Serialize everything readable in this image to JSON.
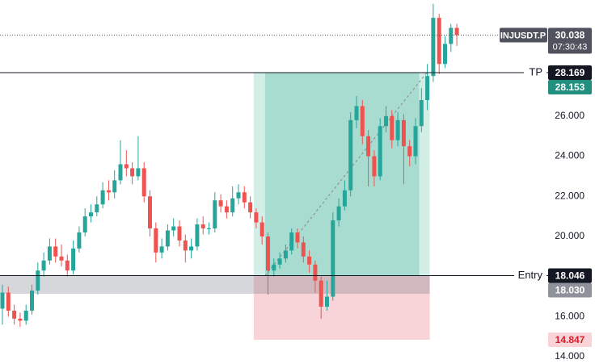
{
  "chart_data": {
    "type": "candlestick",
    "symbol": "INJUSDT.P",
    "countdown": "07:30:43",
    "up_color": "#26a69a",
    "down_color": "#ef5350",
    "open": [
      16.4,
      17.2,
      16.3,
      15.9,
      15.8,
      16.3,
      17.3,
      18.3,
      18.8,
      19.5,
      19.0,
      18.8,
      18.3,
      19.4,
      20.2,
      21.0,
      21.2,
      21.6,
      22.3,
      22.2,
      22.8,
      23.6,
      23.4,
      23.0,
      23.4,
      22.0,
      20.4,
      19.2,
      19.5,
      20.3,
      20.5,
      19.8,
      19.3,
      19.5,
      20.6,
      20.4,
      20.4,
      21.8,
      21.5,
      21.2,
      21.9,
      22.2,
      21.7,
      21.2,
      20.7,
      20.0,
      18.3,
      18.6,
      18.9,
      19.3,
      20.2,
      19.7,
      19.0,
      18.6,
      17.8,
      16.5,
      17.0,
      20.8,
      21.5,
      22.3,
      25.8,
      26.5,
      25.0,
      24.0,
      23.0,
      25.5,
      26.0,
      24.8,
      25.8,
      24.5,
      24.0,
      25.5,
      26.8,
      28.0,
      30.9,
      28.6,
      29.6,
      30.4
    ],
    "high": [
      17.6,
      17.5,
      16.6,
      16.2,
      16.6,
      17.6,
      18.7,
      19.2,
      19.9,
      19.9,
      19.6,
      19.1,
      19.8,
      20.5,
      21.4,
      21.6,
      22.0,
      22.7,
      22.8,
      23.3,
      24.8,
      24.3,
      23.7,
      25.0,
      23.7,
      22.3,
      20.7,
      19.9,
      20.6,
      20.9,
      20.8,
      20.1,
      19.9,
      20.9,
      21.0,
      20.7,
      22.2,
      22.1,
      21.8,
      22.5,
      22.6,
      22.5,
      22.0,
      21.4,
      21.0,
      20.2,
      18.9,
      19.2,
      19.6,
      20.4,
      20.4,
      20.0,
      19.3,
      18.8,
      18.0,
      17.8,
      21.2,
      21.9,
      22.8,
      26.2,
      27.0,
      26.8,
      25.3,
      24.3,
      25.9,
      26.5,
      26.3,
      26.2,
      26.1,
      24.8,
      25.9,
      27.4,
      28.6,
      31.6,
      31.1,
      30.0,
      30.6,
      30.6
    ],
    "low": [
      15.6,
      16.0,
      15.6,
      15.5,
      15.6,
      16.1,
      17.1,
      18.0,
      18.6,
      18.7,
      18.5,
      18.0,
      18.1,
      19.2,
      20.0,
      20.7,
      21.0,
      21.4,
      21.8,
      21.9,
      22.6,
      23.0,
      22.6,
      22.8,
      21.7,
      20.0,
      18.7,
      18.9,
      19.3,
      20.0,
      19.5,
      18.7,
      18.9,
      19.3,
      20.1,
      20.1,
      20.2,
      21.2,
      20.9,
      21.0,
      21.6,
      21.4,
      20.9,
      20.4,
      19.6,
      17.1,
      18.0,
      18.4,
      18.7,
      19.1,
      19.4,
      18.7,
      18.2,
      17.2,
      15.9,
      16.3,
      16.8,
      20.5,
      21.3,
      22.0,
      25.4,
      24.6,
      22.5,
      22.5,
      22.8,
      25.2,
      24.4,
      24.5,
      22.6,
      23.5,
      23.6,
      25.2,
      26.3,
      27.7,
      28.1,
      28.4,
      29.2,
      29.5
    ],
    "close": [
      17.2,
      16.3,
      15.9,
      15.8,
      16.3,
      17.3,
      18.3,
      18.8,
      19.5,
      19.0,
      18.8,
      18.3,
      19.4,
      20.2,
      21.0,
      21.2,
      21.6,
      22.3,
      22.2,
      22.8,
      23.6,
      23.4,
      23.0,
      23.4,
      22.0,
      20.4,
      19.2,
      19.5,
      20.3,
      20.5,
      19.8,
      19.3,
      19.5,
      20.6,
      20.4,
      20.4,
      21.8,
      21.5,
      21.2,
      21.9,
      22.2,
      21.7,
      21.2,
      20.7,
      20.0,
      18.3,
      18.6,
      18.9,
      19.3,
      20.2,
      19.7,
      19.0,
      18.6,
      17.8,
      16.5,
      17.0,
      20.8,
      21.5,
      22.3,
      25.8,
      26.5,
      25.0,
      24.0,
      23.0,
      25.5,
      26.0,
      24.8,
      25.8,
      24.5,
      24.0,
      25.5,
      26.8,
      28.0,
      30.9,
      28.6,
      29.6,
      30.4,
      30.04
    ],
    "last_price": 30.038,
    "ylim": [
      13.64,
      31.79
    ],
    "yticks": [
      {
        "value": 14,
        "label": "14.000"
      },
      {
        "value": 16,
        "label": "16.000"
      },
      {
        "value": 20,
        "label": "20.000"
      },
      {
        "value": 22,
        "label": "22.000"
      },
      {
        "value": 24,
        "label": "24.000"
      },
      {
        "value": 26,
        "label": "26.000"
      }
    ],
    "levels": [
      {
        "name": "TP",
        "value": 28.169
      },
      {
        "name": "Entry",
        "value": 18.046
      }
    ],
    "position": {
      "start": 43,
      "end": 72,
      "target": 28.153,
      "stop": 14.847
    },
    "zone": {
      "top": {
        "value": 18.03,
        "label": "18.030"
      },
      "bottom": 17.14
    }
  }
}
